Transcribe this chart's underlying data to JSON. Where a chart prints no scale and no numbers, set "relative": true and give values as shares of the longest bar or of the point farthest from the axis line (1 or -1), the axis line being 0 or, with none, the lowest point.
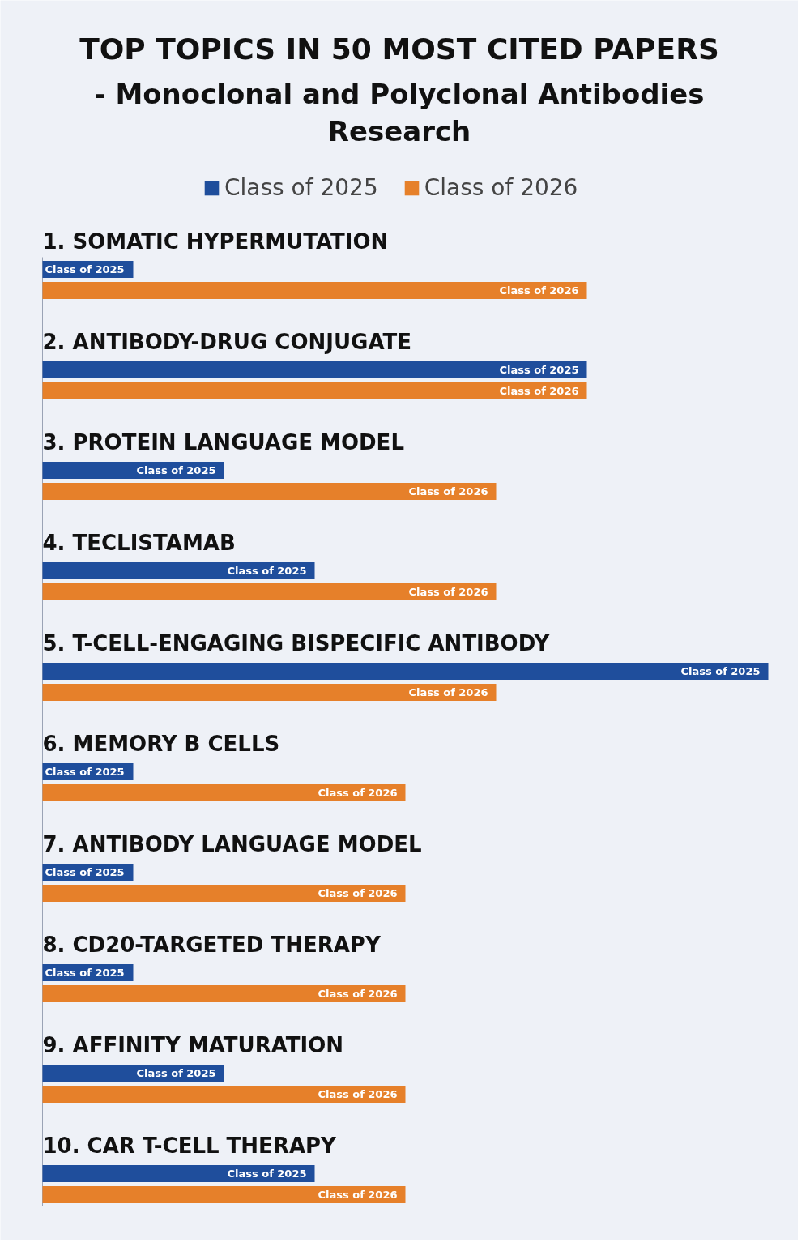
{
  "chart_data": {
    "type": "bar",
    "orientation": "horizontal",
    "relative": true,
    "title": "TOP TOPICS IN 50 MOST CITED PAPERS",
    "subtitle": "- Monoclonal and Polyclonal Antibodies Research",
    "legend": "top",
    "categories": [
      "1. SOMATIC HYPERMUTATION",
      "2. ANTIBODY-DRUG CONJUGATE",
      "3. PROTEIN LANGUAGE MODEL",
      "4. TECLISTAMAB",
      "5. T-CELL-ENGAGING BISPECIFIC ANTIBODY",
      "6. MEMORY B CELLS",
      "7. ANTIBODY LANGUAGE MODEL",
      "8. CD20-TARGETED THERAPY",
      "9. AFFINITY MATURATION",
      "10. CAR T-CELL THERAPY"
    ],
    "series": [
      {
        "name": "Class of 2025",
        "color": "#1f4e9c",
        "values": [
          0.125,
          0.75,
          0.25,
          0.375,
          1.0,
          0.125,
          0.125,
          0.125,
          0.25,
          0.375
        ]
      },
      {
        "name": "Class of 2026",
        "color": "#e6802a",
        "values": [
          0.75,
          0.75,
          0.625,
          0.625,
          0.625,
          0.5,
          0.5,
          0.5,
          0.5,
          0.5
        ]
      }
    ]
  }
}
